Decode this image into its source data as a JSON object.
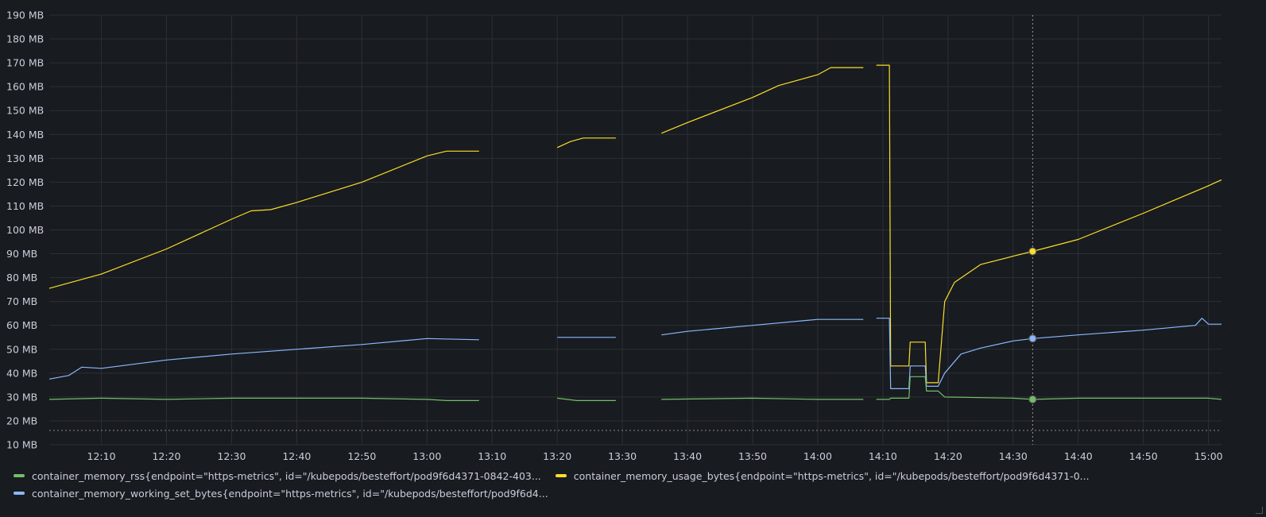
{
  "chart_data": {
    "type": "line",
    "ylim": [
      10,
      190
    ],
    "xlim": [
      "12:02",
      "15:02"
    ],
    "y_ticks": [
      "10 MB",
      "20 MB",
      "30 MB",
      "40 MB",
      "50 MB",
      "60 MB",
      "70 MB",
      "80 MB",
      "90 MB",
      "100 MB",
      "110 MB",
      "120 MB",
      "130 MB",
      "140 MB",
      "150 MB",
      "160 MB",
      "170 MB",
      "180 MB",
      "190 MB"
    ],
    "x_ticks": [
      "12:10",
      "12:20",
      "12:30",
      "12:40",
      "12:50",
      "13:00",
      "13:10",
      "13:20",
      "13:30",
      "13:40",
      "13:50",
      "14:00",
      "14:10",
      "14:20",
      "14:30",
      "14:40",
      "14:50",
      "15:00"
    ],
    "hover_time": "14:33",
    "threshold_y": 16,
    "grid": true,
    "legend_placement": "bottom",
    "series": [
      {
        "name": "container_memory_usage_bytes{endpoint=\"https-metrics\", id=\"/kubepods/besteffort/pod9f6d4371-0...",
        "color": "#fade2a",
        "segments": [
          [
            [
              "12:02",
              75.5
            ],
            [
              "12:10",
              81.5
            ],
            [
              "12:20",
              92
            ],
            [
              "12:30",
              104.5
            ],
            [
              "12:33",
              108
            ],
            [
              "12:36",
              108.5
            ],
            [
              "12:40",
              111.5
            ],
            [
              "12:50",
              120
            ],
            [
              "13:00",
              131
            ],
            [
              "13:03",
              133
            ],
            [
              "13:08",
              133
            ]
          ],
          [
            [
              "13:20",
              134.5
            ],
            [
              "13:22",
              137
            ],
            [
              "13:24",
              138.5
            ],
            [
              "13:29",
              138.5
            ]
          ],
          [
            [
              "13:36",
              140.5
            ],
            [
              "13:40",
              145
            ],
            [
              "13:50",
              155.5
            ],
            [
              "13:54",
              160.5
            ],
            [
              "14:00",
              165
            ],
            [
              "14:02",
              168
            ],
            [
              "14:07",
              168
            ]
          ],
          [
            [
              "14:09",
              169
            ],
            [
              "14:11",
              169
            ],
            [
              "14:11.2",
              43
            ],
            [
              "14:14",
              43
            ],
            [
              "14:14.2",
              53
            ],
            [
              "14:16.5",
              53
            ],
            [
              "14:16.7",
              36
            ],
            [
              "14:18.5",
              36
            ],
            [
              "14:19.5",
              70
            ],
            [
              "14:21",
              78
            ],
            [
              "14:25",
              85.5
            ],
            [
              "14:30",
              89
            ],
            [
              "14:33",
              91
            ],
            [
              "14:40",
              96
            ],
            [
              "14:50",
              107
            ],
            [
              "15:00",
              118.5
            ],
            [
              "15:02",
              121
            ]
          ]
        ]
      },
      {
        "name": "container_memory_working_set_bytes{endpoint=\"https-metrics\", id=\"/kubepods/besteffort/pod9f6d4...",
        "color": "#8ab8ff",
        "segments": [
          [
            [
              "12:02",
              37.5
            ],
            [
              "12:05",
              39
            ],
            [
              "12:07",
              42.5
            ],
            [
              "12:10",
              42
            ],
            [
              "12:20",
              45.5
            ],
            [
              "12:30",
              48
            ],
            [
              "12:40",
              50
            ],
            [
              "12:50",
              52
            ],
            [
              "13:00",
              54.5
            ],
            [
              "13:08",
              54
            ]
          ],
          [
            [
              "13:20",
              55
            ],
            [
              "13:29",
              55
            ]
          ],
          [
            [
              "13:36",
              56
            ],
            [
              "13:40",
              57.5
            ],
            [
              "13:50",
              60
            ],
            [
              "14:00",
              62.5
            ],
            [
              "14:07",
              62.5
            ]
          ],
          [
            [
              "14:09",
              63
            ],
            [
              "14:11",
              63
            ],
            [
              "14:11.2",
              33.5
            ],
            [
              "14:14",
              33.5
            ],
            [
              "14:14.2",
              43
            ],
            [
              "14:16.5",
              43
            ],
            [
              "14:16.7",
              34.5
            ],
            [
              "14:18.5",
              34.5
            ],
            [
              "14:19.5",
              40
            ],
            [
              "14:22",
              48
            ],
            [
              "14:25",
              50.5
            ],
            [
              "14:30",
              53.5
            ],
            [
              "14:33",
              54.5
            ],
            [
              "14:40",
              56
            ],
            [
              "14:50",
              58
            ],
            [
              "14:58",
              60
            ],
            [
              "14:59",
              63
            ],
            [
              "15:00",
              60.5
            ],
            [
              "15:02",
              60.5
            ]
          ]
        ]
      },
      {
        "name": "container_memory_rss{endpoint=\"https-metrics\", id=\"/kubepods/besteffort/pod9f6d4371-0842-403...",
        "color": "#73bf69",
        "segments": [
          [
            [
              "12:02",
              29
            ],
            [
              "12:10",
              29.5
            ],
            [
              "12:20",
              29
            ],
            [
              "12:30",
              29.5
            ],
            [
              "12:40",
              29.5
            ],
            [
              "12:50",
              29.5
            ],
            [
              "13:00",
              29
            ],
            [
              "13:03",
              28.5
            ],
            [
              "13:08",
              28.5
            ]
          ],
          [
            [
              "13:20",
              29.5
            ],
            [
              "13:23",
              28.5
            ],
            [
              "13:29",
              28.5
            ]
          ],
          [
            [
              "13:36",
              29
            ],
            [
              "13:50",
              29.5
            ],
            [
              "14:00",
              29
            ],
            [
              "14:07",
              29
            ]
          ],
          [
            [
              "14:09",
              29
            ],
            [
              "14:11",
              29
            ],
            [
              "14:11.2",
              29.5
            ],
            [
              "14:14",
              29.5
            ],
            [
              "14:14.2",
              38.5
            ],
            [
              "14:16.5",
              38.5
            ],
            [
              "14:16.7",
              32.5
            ],
            [
              "14:18.5",
              32.5
            ],
            [
              "14:19.5",
              30
            ],
            [
              "14:30",
              29.5
            ],
            [
              "14:33",
              29
            ],
            [
              "14:40",
              29.5
            ],
            [
              "14:50",
              29.5
            ],
            [
              "15:00",
              29.5
            ],
            [
              "15:02",
              29
            ]
          ]
        ]
      }
    ]
  },
  "legend": [
    {
      "label": "container_memory_rss{endpoint=\"https-metrics\", id=\"/kubepods/besteffort/pod9f6d4371-0842-403...",
      "color": "#73bf69"
    },
    {
      "label": "container_memory_usage_bytes{endpoint=\"https-metrics\", id=\"/kubepods/besteffort/pod9f6d4371-0...",
      "color": "#fade2a"
    },
    {
      "label": "container_memory_working_set_bytes{endpoint=\"https-metrics\", id=\"/kubepods/besteffort/pod9f6d4...",
      "color": "#8ab8ff"
    }
  ]
}
